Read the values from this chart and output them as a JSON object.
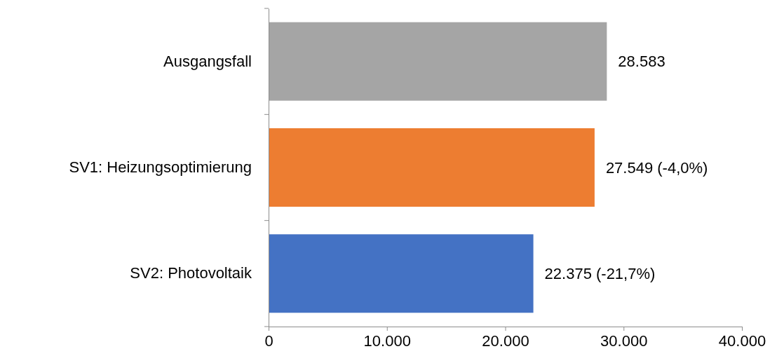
{
  "chart_data": {
    "type": "bar",
    "orientation": "horizontal",
    "categories": [
      "Ausgangsfall",
      "SV1: Heizungsoptimierung",
      "SV2: Photovoltaik"
    ],
    "values": [
      28583,
      27549,
      22375
    ],
    "colors": [
      "#a5a5a5",
      "#ed7d31",
      "#4472c4"
    ],
    "value_labels": [
      "28.583",
      "27.549 (-4,0%)",
      "22.375 (-21,7%)"
    ],
    "xlim": [
      0,
      40000
    ],
    "xticks": [
      0,
      {
        "value": 10000,
        "label": "10.000"
      },
      {
        "value": 20000,
        "label": "20.000"
      },
      {
        "value": 30000,
        "label": "30.000"
      },
      {
        "value": 40000,
        "label": "40.000"
      }
    ],
    "grid": false
  }
}
